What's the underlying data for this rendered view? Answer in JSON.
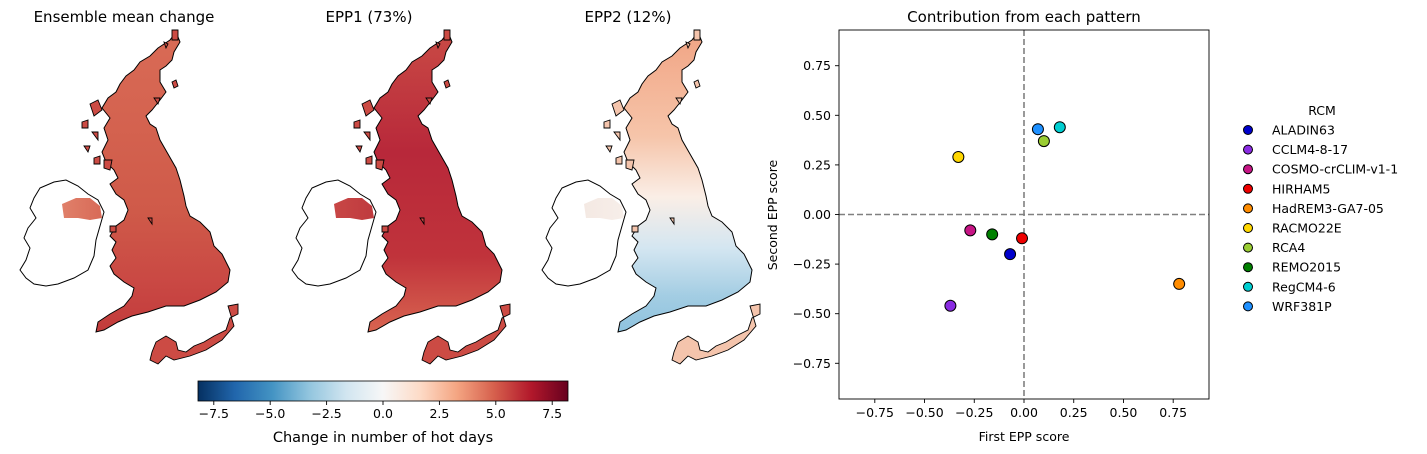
{
  "maps": [
    {
      "title": "Ensemble mean change",
      "fill": "ensemble"
    },
    {
      "title": "EPP1 (73%)",
      "fill": "epp1"
    },
    {
      "title": "EPP2 (12%)",
      "fill": "epp2"
    }
  ],
  "colorbar": {
    "label": "Change in number of hot days",
    "range": [
      -8.2,
      8.2
    ],
    "ticks": [
      -7.5,
      -5.0,
      -2.5,
      0.0,
      2.5,
      5.0,
      7.5
    ],
    "tick_labels": [
      "−7.5",
      "−5.0",
      "−2.5",
      "0.0",
      "2.5",
      "5.0",
      "7.5"
    ],
    "colormap": "RdBu_r"
  },
  "chart_data": {
    "type": "scatter",
    "title": "Contribution from each pattern",
    "xlabel": "First EPP score",
    "ylabel": "Second EPP score",
    "xlim": [
      -0.93,
      0.93
    ],
    "ylim": [
      -0.93,
      0.93
    ],
    "x_ticks": [
      -0.75,
      -0.5,
      -0.25,
      0.0,
      0.25,
      0.5,
      0.75
    ],
    "y_ticks": [
      -0.75,
      -0.5,
      -0.25,
      0.0,
      0.25,
      0.5,
      0.75
    ],
    "x_tick_labels": [
      "−0.75",
      "−0.50",
      "−0.25",
      "0.00",
      "0.25",
      "0.50",
      "0.75"
    ],
    "y_tick_labels": [
      "−0.75",
      "−0.50",
      "−0.25",
      "0.00",
      "0.25",
      "0.50",
      "0.75"
    ],
    "reference_lines": {
      "x": 0.0,
      "y": 0.0,
      "style": "dashed"
    },
    "grid": false,
    "legend_title": "RCM",
    "legend_position": "right, outside",
    "series": [
      {
        "name": "ALADIN63",
        "color": "#0000cc",
        "x": -0.07,
        "y": -0.2
      },
      {
        "name": "CCLM4-8-17",
        "color": "#8a2be2",
        "x": -0.37,
        "y": -0.46
      },
      {
        "name": "COSMO-crCLIM-v1-1",
        "color": "#c71585",
        "x": -0.27,
        "y": -0.08
      },
      {
        "name": "HIRHAM5",
        "color": "#ee0000",
        "x": -0.01,
        "y": -0.12
      },
      {
        "name": "HadREM3-GA7-05",
        "color": "#ff8c00",
        "x": 0.78,
        "y": -0.35
      },
      {
        "name": "RACMO22E",
        "color": "#ffd700",
        "x": -0.33,
        "y": 0.29
      },
      {
        "name": "RCA4",
        "color": "#9acd32",
        "x": 0.1,
        "y": 0.37
      },
      {
        "name": "REMO2015",
        "color": "#008000",
        "x": -0.16,
        "y": -0.1
      },
      {
        "name": "RegCM4-6",
        "color": "#00ced1",
        "x": 0.18,
        "y": 0.44
      },
      {
        "name": "WRF381P",
        "color": "#1e90ff",
        "x": 0.07,
        "y": 0.43
      }
    ]
  }
}
